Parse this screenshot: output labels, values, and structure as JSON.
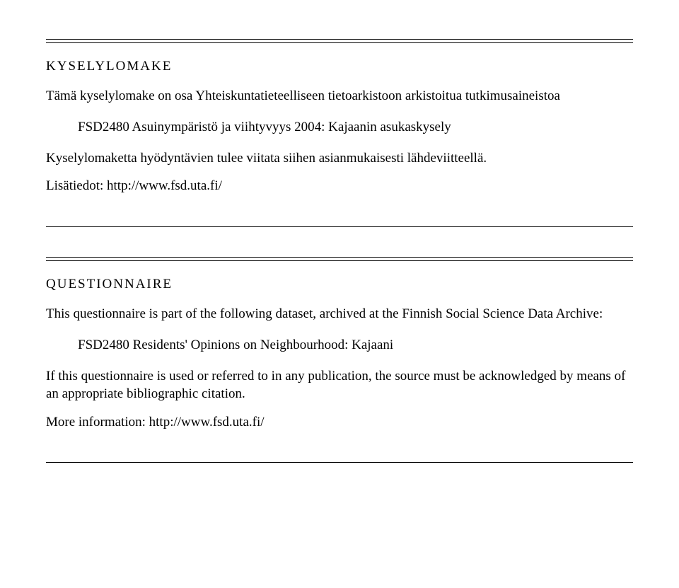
{
  "rule_color": "#000000",
  "section1": {
    "title": "KYSELYLOMAKE",
    "intro": "Tämä kyselylomake on osa Yhteiskuntatieteelliseen tietoarkistoon arkistoitua tutkimusaineistoa",
    "dataset": "FSD2480 Asuinympäristö ja viihtyvyys 2004: Kajaanin asukaskysely",
    "citation": "Kyselylomaketta hyödyntävien tulee viitata siihen asianmukaisesti lähdeviitteellä.",
    "more_info": "Lisätiedot: http://www.fsd.uta.fi/"
  },
  "section2": {
    "title": "QUESTIONNAIRE",
    "intro": "This questionnaire is part of the following dataset, archived at the Finnish Social Science Data Archive:",
    "dataset": "FSD2480 Residents' Opinions on Neighbourhood: Kajaani",
    "citation": "If this questionnaire is used or referred to in any publication, the source must be acknowledged by means of an appropriate bibliographic citation.",
    "more_info": "More information: http://www.fsd.uta.fi/"
  }
}
